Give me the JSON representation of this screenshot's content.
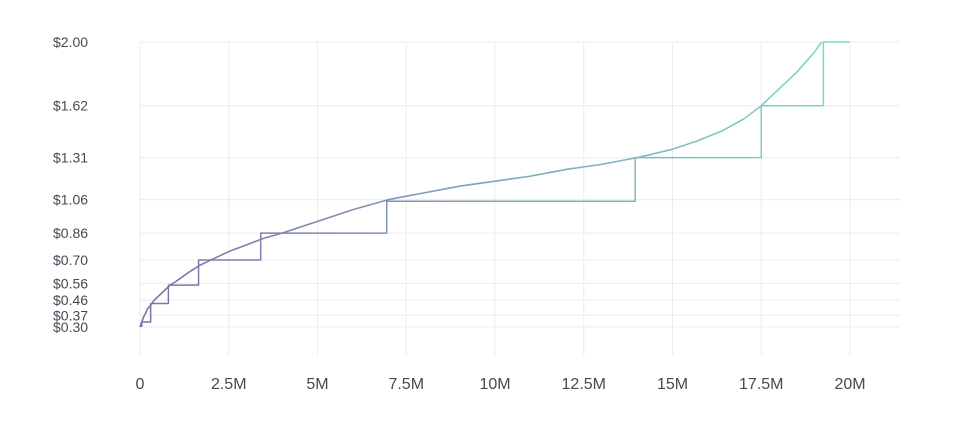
{
  "chart_data": {
    "type": "line",
    "title": "",
    "xlabel": "",
    "ylabel": "",
    "grid": true,
    "xlim": [
      0,
      20000000
    ],
    "ylim": [
      0.3,
      2.0
    ],
    "x_ticks": [
      0,
      2500000,
      5000000,
      7500000,
      10000000,
      12500000,
      15000000,
      17500000,
      20000000
    ],
    "x_tick_labels": [
      "0",
      "2.5M",
      "5M",
      "7.5M",
      "10M",
      "12.5M",
      "15M",
      "17.5M",
      "20M"
    ],
    "y_ticks": [
      0.3,
      0.37,
      0.46,
      0.56,
      0.7,
      0.86,
      1.06,
      1.31,
      1.62,
      2.0
    ],
    "y_tick_labels": [
      "$0.30",
      "$0.37",
      "$0.46",
      "$0.56",
      "$0.70",
      "$0.86",
      "$1.06",
      "$1.31",
      "$1.62",
      "$2.00"
    ],
    "gradient_colors": [
      "#7f70ab",
      "#7fd9c9"
    ],
    "series": [
      {
        "kind": "curve",
        "x": [
          0,
          50000,
          100000,
          150000,
          220000,
          300000,
          400000,
          550000,
          700000,
          850000,
          1000000,
          1200000,
          1400000,
          1700000,
          2000000,
          2500000,
          3000000,
          3500000,
          4000000,
          5000000,
          6000000,
          7000000,
          8000000,
          9000000,
          10000000,
          11000000,
          12000000,
          13000000,
          14000000,
          15000000,
          15700000,
          16400000,
          17000000,
          17500000,
          18000000,
          18500000,
          19000000,
          19200000
        ],
        "y": [
          0.3,
          0.33,
          0.36,
          0.38,
          0.41,
          0.43,
          0.46,
          0.49,
          0.52,
          0.55,
          0.57,
          0.6,
          0.63,
          0.67,
          0.7,
          0.75,
          0.79,
          0.83,
          0.86,
          0.93,
          1.0,
          1.06,
          1.1,
          1.14,
          1.17,
          1.2,
          1.24,
          1.27,
          1.31,
          1.36,
          1.41,
          1.47,
          1.54,
          1.62,
          1.72,
          1.82,
          1.94,
          2.0
        ]
      },
      {
        "kind": "step",
        "x": [
          50000,
          50000,
          300000,
          300000,
          800000,
          800000,
          1650000,
          1650000,
          3400000,
          3400000,
          6950000,
          6950000,
          13950000,
          13950000,
          17500000,
          17500000,
          19250000,
          19250000,
          20000000
        ],
        "y": [
          0.3,
          0.33,
          0.33,
          0.44,
          0.44,
          0.55,
          0.55,
          0.7,
          0.7,
          0.86,
          0.86,
          1.05,
          1.05,
          1.31,
          1.31,
          1.62,
          1.62,
          2.0,
          2.0
        ]
      }
    ]
  }
}
